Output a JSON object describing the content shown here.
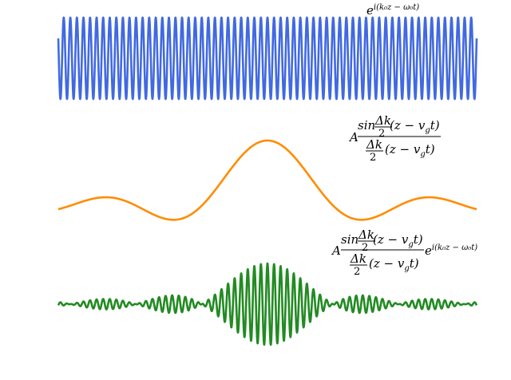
{
  "chart_data": [
    {
      "type": "line",
      "title": "",
      "xlabel": "",
      "ylabel": "",
      "grid": false,
      "axes_visible": false,
      "x_range": [
        -20,
        20
      ],
      "ylim": [
        -1,
        1
      ],
      "k0": 10,
      "series": [
        {
          "name": "",
          "function": "cos(k0*z)",
          "color": "#4169E1",
          "samples": 4000
        }
      ],
      "annotation": {
        "exponent": "i(k₀z − ω₀t)"
      }
    },
    {
      "type": "line",
      "title": "",
      "xlabel": "",
      "ylabel": "",
      "grid": false,
      "axes_visible": false,
      "x_range": [
        -20,
        20
      ],
      "ylim": [
        -0.25,
        1
      ],
      "dk": 1,
      "series": [
        {
          "name": "",
          "function": "sin(dk/2*z)/(dk/2*z)",
          "color": "#FF8C00",
          "samples": 1200
        }
      ],
      "annotation": {
        "prefix": "A",
        "num": "sin",
        "dk": "Δk",
        "two": "2",
        "arg": "(z − v",
        "sub": "g",
        "t": "t)"
      }
    },
    {
      "type": "line",
      "title": "",
      "xlabel": "",
      "ylabel": "",
      "grid": false,
      "axes_visible": false,
      "x_range": [
        -20,
        20
      ],
      "ylim": [
        -1,
        1
      ],
      "k0": 10,
      "dk": 1,
      "series": [
        {
          "name": "",
          "function": "sin(dk/2*z)/(dk/2*z)*cos(k0*z)",
          "color": "#228B22",
          "samples": 4000
        }
      ],
      "annotation": {
        "prefix": "A",
        "num": "sin",
        "dk": "Δk",
        "two": "2",
        "arg": "(z − v",
        "sub": "g",
        "t": "t)",
        "exponent": "i(k₀z − ω₀t)"
      }
    }
  ]
}
